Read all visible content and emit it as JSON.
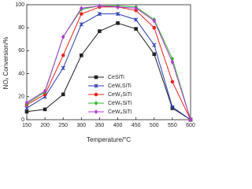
{
  "chart_data": {
    "type": "line",
    "xlabel": "Temperature/°C",
    "ylabel": "NOₓ Conversion/%",
    "x": [
      150,
      200,
      250,
      300,
      350,
      400,
      450,
      500,
      550,
      600
    ],
    "series": [
      {
        "name": "CeSiTi",
        "color": "#222222",
        "marker": "square",
        "values": [
          7,
          9,
          22,
          56,
          77,
          84,
          79,
          57,
          10,
          0
        ]
      },
      {
        "name": "CeW₁SiTi",
        "color": "#2b3bb0",
        "marker": "star",
        "values": [
          10,
          20,
          45,
          83,
          92,
          92,
          87,
          65,
          11,
          0
        ]
      },
      {
        "name": "CeW₃SiTi",
        "color": "#e8231f",
        "marker": "circle",
        "values": [
          13,
          22,
          56,
          92,
          98,
          98,
          95,
          80,
          33,
          0
        ]
      },
      {
        "name": "CeW₅SiTi",
        "color": "#2fb52f",
        "marker": "diamond",
        "values": [
          14,
          24,
          72,
          96,
          99,
          99,
          98,
          87,
          53,
          0
        ]
      },
      {
        "name": "CeW₈SiTi",
        "color": "#b23bd6",
        "marker": "diamond",
        "values": [
          15,
          25,
          72,
          97,
          99,
          98,
          97,
          86,
          50,
          0
        ]
      }
    ],
    "xlim": [
      150,
      600
    ],
    "xticks": [
      150,
      200,
      250,
      300,
      350,
      400,
      450,
      500,
      550,
      600
    ],
    "ylim": [
      0,
      100
    ],
    "yticks": [
      0,
      20,
      40,
      60,
      80,
      100
    ],
    "legend": "lower-center"
  }
}
